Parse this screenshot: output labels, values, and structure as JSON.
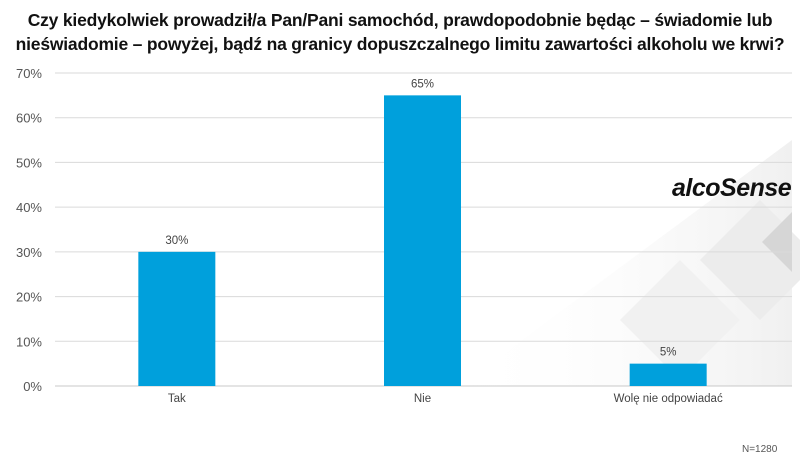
{
  "chart_data": {
    "type": "bar",
    "title": "Czy kiedykolwiek prowadził/a Pan/Pani samochód, prawdopodobnie będąc – świadomie lub nieświadomie – powyżej, bądź na granicy dopuszczalnego limitu zawartości alkoholu we krwi?",
    "categories": [
      "Tak",
      "Nie",
      "Wolę nie odpowiadać"
    ],
    "values": [
      30,
      65,
      5
    ],
    "data_labels": [
      "30%",
      "65%",
      "5%"
    ],
    "yticks": [
      "0%",
      "10%",
      "20%",
      "30%",
      "40%",
      "50%",
      "60%",
      "70%"
    ],
    "ylim": [
      0,
      70
    ],
    "xlabel": "",
    "ylabel": "",
    "grid": true,
    "bar_color": "#00a0dc",
    "note": "N=1280"
  },
  "logo": "alcoSense"
}
